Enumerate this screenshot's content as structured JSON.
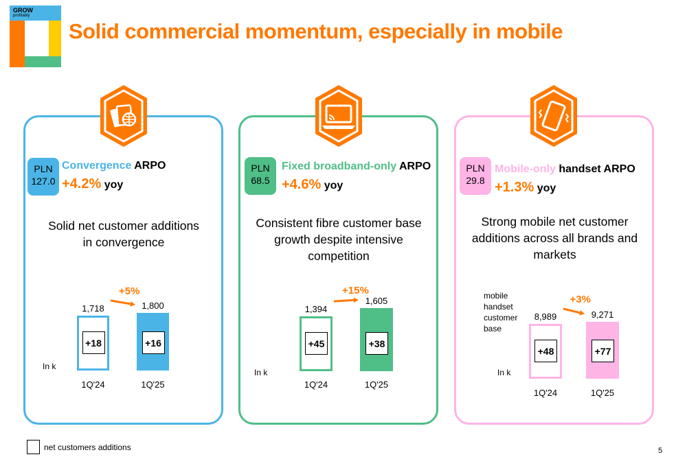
{
  "logo": {
    "line1": "GROW",
    "line2": "profitably"
  },
  "title": "Solid commercial momentum, especially in mobile",
  "colors": {
    "orange": "#ff7900",
    "blue": "#4bb4e6",
    "green": "#50be87",
    "pink": "#ffb4e6"
  },
  "panels": [
    {
      "badge": {
        "currency": "PLN",
        "value": "127.0"
      },
      "arpo_name": "Convergence",
      "arpo_suffix": " ARPO",
      "growth": "+4.2%",
      "yoy": " yoy",
      "description": "Solid net customer additions in convergence",
      "icon": "cards-globe-icon",
      "unit": "In k"
    },
    {
      "badge": {
        "currency": "PLN",
        "value": "68.5"
      },
      "arpo_name": "Fixed broadband-only",
      "arpo_suffix": " ARPO",
      "growth": "+4.6%",
      "yoy": " yoy",
      "description": "Consistent fibre customer base growth despite intensive competition",
      "icon": "laptop-wifi-icon",
      "unit": "In k"
    },
    {
      "badge": {
        "currency": "PLN",
        "value": "29.8"
      },
      "arpo_name": "Mobile-only",
      "arpo_suffix": " handset ARPO",
      "growth": "+1.3%",
      "yoy": " yoy",
      "description": "Strong mobile net customer additions across all brands and markets",
      "icon": "smartphone-vibrate-icon",
      "unit": "In k",
      "side_label": [
        "mobile",
        "handset",
        "customer",
        "base"
      ]
    }
  ],
  "chart_data": [
    {
      "type": "bar",
      "categories": [
        "1Q'24",
        "1Q'25"
      ],
      "values": [
        1718,
        1800
      ],
      "value_labels": [
        "1,718",
        "1,800"
      ],
      "net_additions": [
        "+18",
        "+16"
      ],
      "growth_label": "+5%",
      "ylabel": "In k"
    },
    {
      "type": "bar",
      "categories": [
        "1Q'24",
        "1Q'25"
      ],
      "values": [
        1394,
        1605
      ],
      "value_labels": [
        "1,394",
        "1,605"
      ],
      "net_additions": [
        "+45",
        "+38"
      ],
      "growth_label": "+15%",
      "ylabel": "In k"
    },
    {
      "type": "bar",
      "categories": [
        "1Q'24",
        "1Q'25"
      ],
      "values": [
        8989,
        9271
      ],
      "value_labels": [
        "8,989",
        "9,271"
      ],
      "net_additions": [
        "+48",
        "+77"
      ],
      "growth_label": "+3%",
      "ylabel": "In k"
    }
  ],
  "legend": {
    "label": "net customers additions"
  },
  "page_number": "5"
}
